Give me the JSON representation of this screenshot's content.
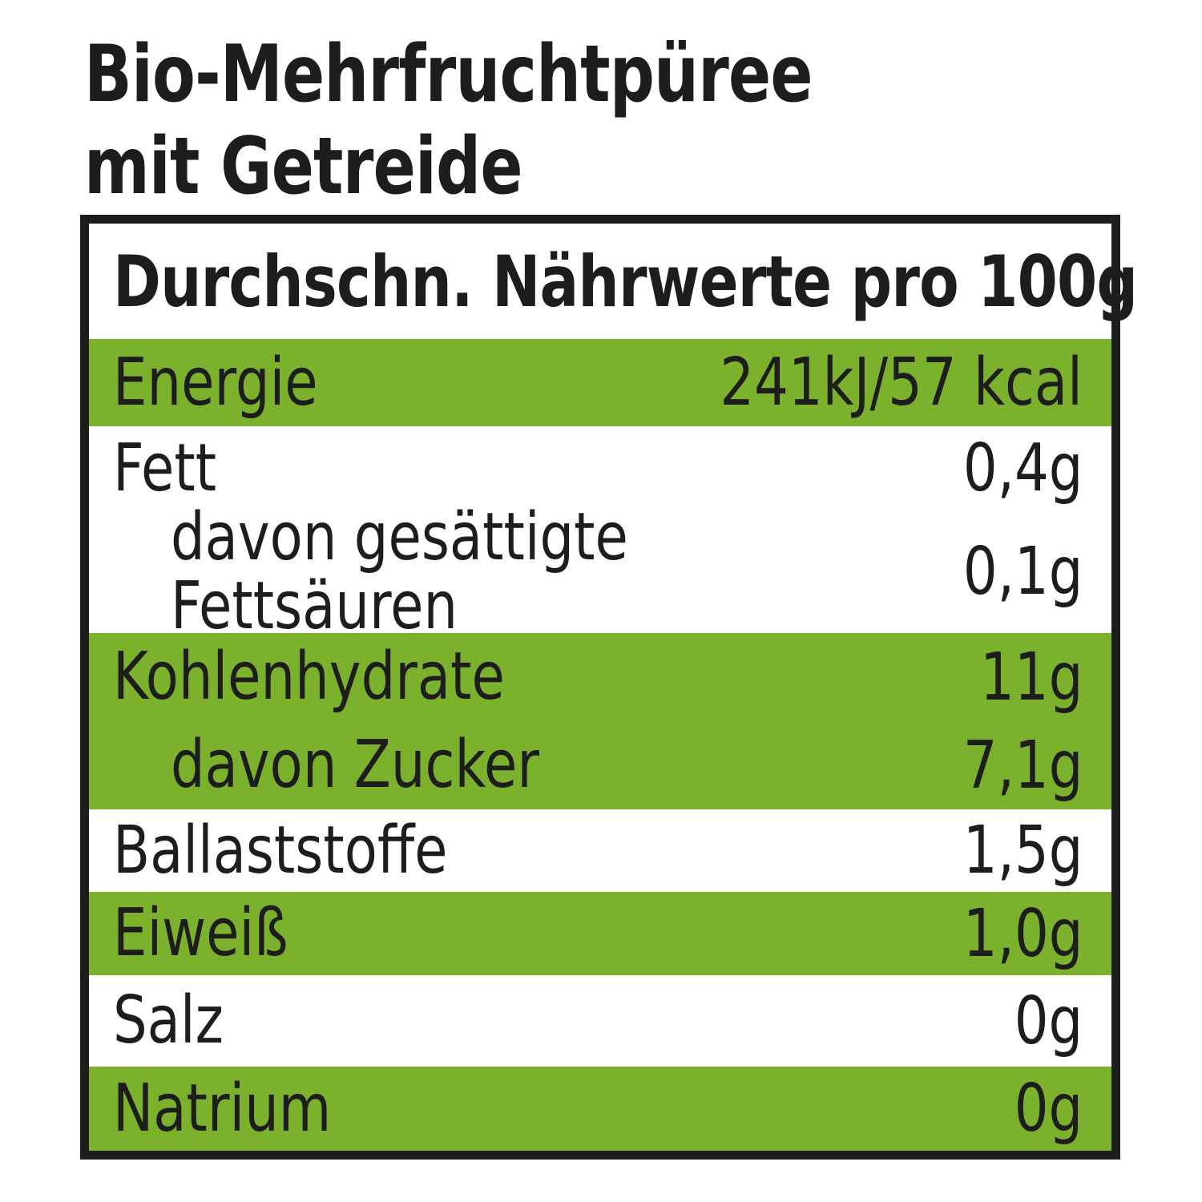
{
  "title": "Bio-Mehrfruchtpüree\nmit Getreide",
  "colors": {
    "accent_green": "#7bb12d",
    "text_black": "#1d1d1b",
    "border_black": "#1d1d1b",
    "row_white": "#ffffff"
  },
  "table": {
    "header": "Durchschn. Nährwerte pro 100g",
    "rows": [
      {
        "label": "Energie",
        "value": "241kJ/57 kcal",
        "highlight": true,
        "indent": false
      },
      {
        "label": "Fett",
        "value": "0,4g",
        "highlight": false,
        "indent": false
      },
      {
        "label": "davon gesättigte\nFettsäuren",
        "value": "0,1g",
        "highlight": false,
        "indent": true
      },
      {
        "label": "Kohlenhydrate",
        "value": "11g",
        "highlight": true,
        "indent": false
      },
      {
        "label": "davon Zucker",
        "value": "7,1g",
        "highlight": true,
        "indent": true
      },
      {
        "label": "Ballaststoffe",
        "value": "1,5g",
        "highlight": false,
        "indent": false
      },
      {
        "label": "Eiweiß",
        "value": "1,0g",
        "highlight": true,
        "indent": false
      },
      {
        "label": "Salz",
        "value": "0g",
        "highlight": false,
        "indent": false
      },
      {
        "label": "Natrium",
        "value": "0g",
        "highlight": true,
        "indent": false
      }
    ]
  }
}
